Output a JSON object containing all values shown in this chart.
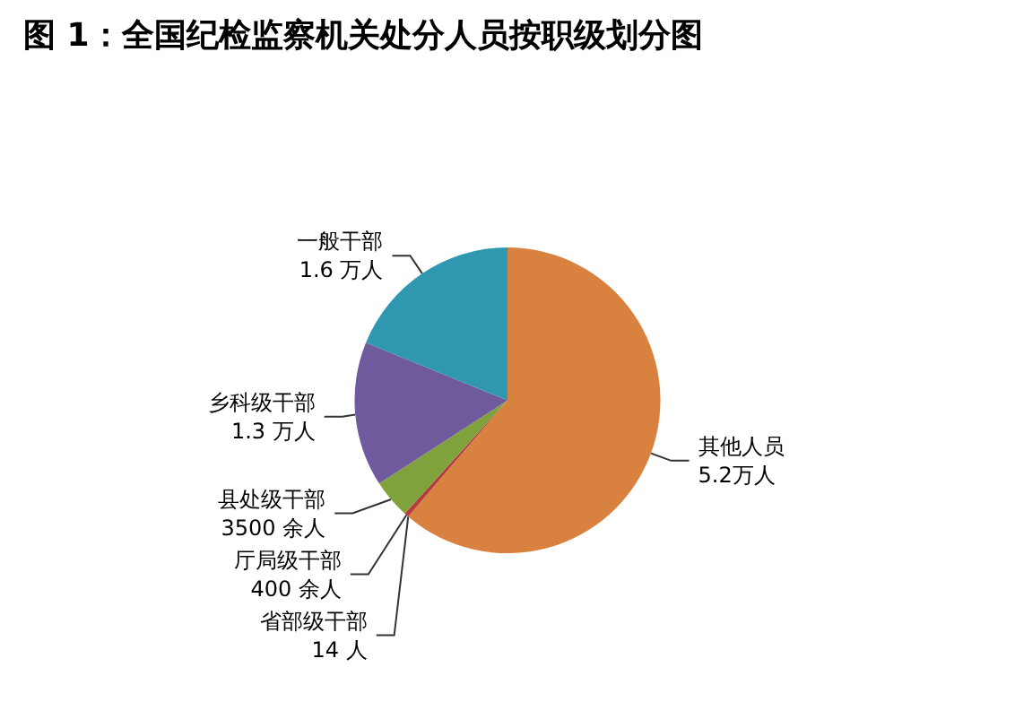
{
  "chart_data": {
    "type": "pie",
    "title": "图 1：全国纪检监察机关处分人员按职级划分图",
    "categories": [
      "其他人员",
      "省部级干部",
      "厅局级干部",
      "县处级干部",
      "乡科级干部",
      "一般干部"
    ],
    "values": [
      61.24,
      0.02,
      0.47,
      4.12,
      15.31,
      18.84
    ],
    "colors": [
      "#d9823f",
      "#3a6ea5",
      "#b83b3b",
      "#80a23c",
      "#6f5a9e",
      "#2f98b0"
    ],
    "annotations": [
      "5.2万人",
      "14 人",
      "400 余人",
      "3500 余人",
      "1.3 万人",
      "1.6 万人"
    ]
  }
}
